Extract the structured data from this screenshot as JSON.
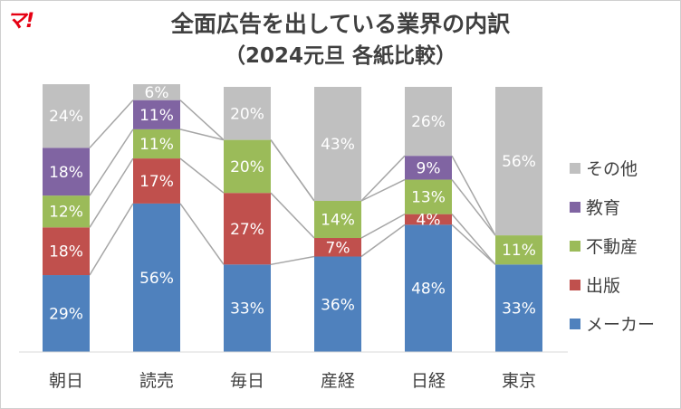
{
  "logo_text": "マ!",
  "chart_data": {
    "type": "bar",
    "stacked": true,
    "title": "全面広告を出している業界の内訳",
    "subtitle": "（2024元旦 各紙比較）",
    "categories": [
      "朝日",
      "読売",
      "毎日",
      "産経",
      "日経",
      "東京"
    ],
    "series": [
      {
        "name": "メーカー",
        "color": "#4f81bd",
        "values": [
          29,
          56,
          33,
          36,
          48,
          33
        ],
        "labels": [
          "29%",
          "56%",
          "33%",
          "36%",
          "48%",
          "33%"
        ]
      },
      {
        "name": "出版",
        "color": "#c0504d",
        "values": [
          18,
          17,
          27,
          7,
          4,
          0
        ],
        "labels": [
          "18%",
          "17%",
          "27%",
          "7%",
          "4%",
          ""
        ]
      },
      {
        "name": "不動産",
        "color": "#9bbb59",
        "values": [
          12,
          11,
          20,
          14,
          13,
          11
        ],
        "labels": [
          "12%",
          "11%",
          "20%",
          "14%",
          "13%",
          "11%"
        ]
      },
      {
        "name": "教育",
        "color": "#8064a2",
        "values": [
          18,
          11,
          0,
          0,
          9,
          0
        ],
        "labels": [
          "18%",
          "11%",
          "",
          "",
          "9%",
          ""
        ]
      },
      {
        "name": "その他",
        "color": "#c0c0c0",
        "values": [
          24,
          6,
          20,
          43,
          26,
          56
        ],
        "labels": [
          "24%",
          "6%",
          "20%",
          "43%",
          "26%",
          "56%"
        ]
      }
    ],
    "ylim": [
      0,
      100
    ],
    "legend_position": "right",
    "grid": false,
    "series_lines": true
  }
}
